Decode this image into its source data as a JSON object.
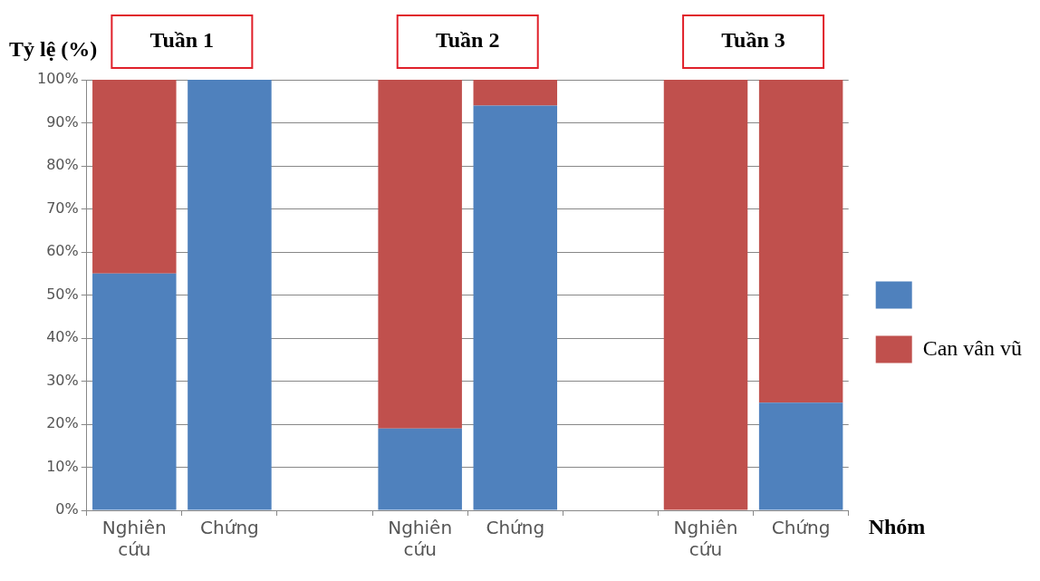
{
  "chart_data": {
    "type": "bar",
    "stacked": true,
    "ylabel": "Tỷ lệ (%)",
    "xlabel": "Nhóm",
    "annotations": [
      "Tuần 1",
      "Tuần 2",
      "Tuần 3"
    ],
    "categories": [
      "Nghiên cứu",
      "Chứng",
      null,
      "Nghiên cứu",
      "Chứng",
      null,
      "Nghiên cứu",
      "Chứng"
    ],
    "series": [
      {
        "color": "#4f81bd",
        "values": [
          55,
          100,
          null,
          19,
          94,
          null,
          0,
          25
        ]
      },
      {
        "name": "Can vân vũ",
        "color": "#c0504d",
        "values": [
          45,
          0,
          null,
          81,
          6,
          null,
          100,
          75
        ]
      }
    ],
    "ylim": [
      0,
      100
    ],
    "yticks": [
      {
        "value": 0,
        "label": "0%"
      },
      {
        "value": 10,
        "label": "10%"
      },
      {
        "value": 20,
        "label": "20%"
      },
      {
        "value": 30,
        "label": "30%"
      },
      {
        "value": 40,
        "label": "40%"
      },
      {
        "value": 50,
        "label": "50%"
      },
      {
        "value": 60,
        "label": "60%"
      },
      {
        "value": 70,
        "label": "70%"
      },
      {
        "value": 80,
        "label": "80%"
      },
      {
        "value": 90,
        "label": "90%"
      },
      {
        "value": 100,
        "label": "100%"
      }
    ],
    "grid": "y",
    "legend": "right"
  }
}
